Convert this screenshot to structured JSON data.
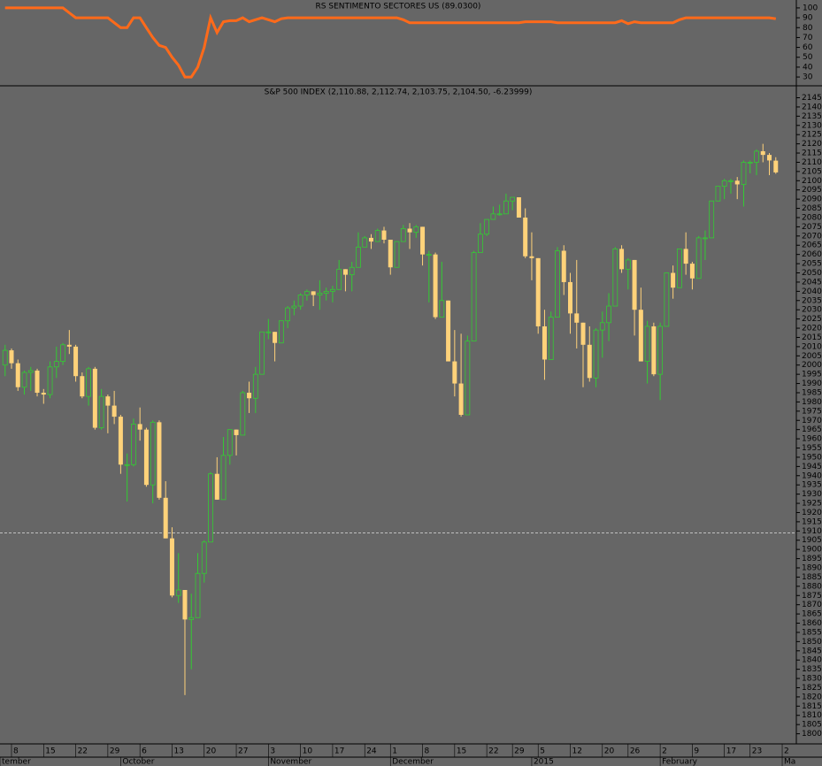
{
  "chart_data": [
    {
      "type": "line",
      "title": "RS SENTIMENTO SECTORES US (89.0300)",
      "color": "#ff6a1a",
      "ylim": [
        22,
        108
      ],
      "yticks": [
        30,
        40,
        50,
        60,
        70,
        80,
        90,
        100
      ],
      "values": [
        100,
        100,
        100,
        100,
        100,
        100,
        100,
        100,
        100,
        100,
        95,
        90,
        90,
        90,
        90,
        90,
        90,
        85,
        80,
        80,
        90,
        90,
        80,
        70,
        62,
        60,
        50,
        42,
        30,
        30,
        40,
        60,
        90,
        75,
        86,
        87,
        87,
        90,
        86,
        88,
        90,
        88,
        86,
        89,
        90,
        90,
        90,
        90,
        90,
        90,
        90,
        90,
        90,
        90,
        90,
        90,
        90,
        90,
        90,
        90,
        90,
        90,
        88,
        85,
        85,
        85,
        85,
        85,
        85,
        85,
        85,
        85,
        85,
        85,
        85,
        85,
        85,
        85,
        85,
        85,
        85,
        86,
        86,
        86,
        86,
        86,
        85,
        85,
        85,
        85,
        85,
        85,
        85,
        85,
        85,
        85,
        87,
        84,
        86,
        85,
        85,
        85,
        85,
        85,
        85,
        88,
        90,
        90,
        90,
        90,
        90,
        90,
        90,
        90,
        90,
        90,
        90,
        90,
        90,
        90,
        89.03
      ]
    },
    {
      "type": "candlestick",
      "title": "S&P 500 INDEX (2,110.88, 2,112.74, 2,103.75, 2,104.50, -6.23999)",
      "up_color": "#33cc33",
      "down_color": "#ffd27a",
      "ylim": [
        1795,
        2151
      ],
      "yticks": [
        1800,
        1805,
        1810,
        1815,
        1820,
        1825,
        1830,
        1835,
        1840,
        1845,
        1850,
        1855,
        1860,
        1865,
        1870,
        1875,
        1880,
        1885,
        1890,
        1895,
        1900,
        1905,
        1910,
        1915,
        1920,
        1925,
        1930,
        1935,
        1940,
        1945,
        1950,
        1955,
        1960,
        1965,
        1970,
        1975,
        1980,
        1985,
        1990,
        1995,
        2000,
        2005,
        2010,
        2015,
        2020,
        2025,
        2030,
        2035,
        2040,
        2045,
        2050,
        2055,
        2060,
        2065,
        2070,
        2075,
        2080,
        2085,
        2090,
        2095,
        2100,
        2105,
        2110,
        2115,
        2120,
        2125,
        2130,
        2135,
        2140,
        2145
      ],
      "reference_line": 1909,
      "xlim": [
        -0.79,
        123.2
      ],
      "xticks": [
        {
          "value": 1,
          "label": "8"
        },
        {
          "value": 6,
          "label": "15"
        },
        {
          "value": 11,
          "label": "22"
        },
        {
          "value": 16,
          "label": "29"
        },
        {
          "value": 21,
          "label": "6"
        },
        {
          "value": 26,
          "label": "13"
        },
        {
          "value": 31,
          "label": "20"
        },
        {
          "value": 36,
          "label": "27"
        },
        {
          "value": 41,
          "label": "3"
        },
        {
          "value": 46,
          "label": "10"
        },
        {
          "value": 51,
          "label": "17"
        },
        {
          "value": 56,
          "label": "24"
        },
        {
          "value": 60,
          "label": "1"
        },
        {
          "value": 65,
          "label": "8"
        },
        {
          "value": 70,
          "label": "15"
        },
        {
          "value": 75,
          "label": "22"
        },
        {
          "value": 79,
          "label": "29"
        },
        {
          "value": 83,
          "label": "5"
        },
        {
          "value": 88,
          "label": "12"
        },
        {
          "value": 93,
          "label": "20"
        },
        {
          "value": 97,
          "label": "26"
        },
        {
          "value": 102,
          "label": "2"
        },
        {
          "value": 107,
          "label": "9"
        },
        {
          "value": 112,
          "label": "17"
        },
        {
          "value": 116,
          "label": "23"
        },
        {
          "value": 121,
          "label": "2"
        }
      ],
      "month_ticks": [
        {
          "value": -0.79,
          "label": "tember"
        },
        {
          "value": 18,
          "label": "October"
        },
        {
          "value": 41,
          "label": "November"
        },
        {
          "value": 60,
          "label": "December"
        },
        {
          "value": 82,
          "label": "2015"
        },
        {
          "value": 102,
          "label": "February"
        },
        {
          "value": 121,
          "label": "Ma"
        }
      ],
      "open": [
        2000,
        2008,
        2001,
        1988,
        1996,
        1997,
        1985,
        1984,
        1999,
        2002,
        2011,
        2010,
        1994,
        1983,
        1998,
        1966,
        1983,
        1978,
        1972,
        1946,
        1946,
        1968,
        1965,
        1935,
        1969,
        1928,
        1906,
        1875,
        1878,
        1862,
        1863,
        1887,
        1904,
        1941,
        1927,
        1951,
        1965,
        1962,
        1985,
        1982,
        1995,
        2018,
        2018,
        2012,
        2024,
        2031,
        2032,
        2038,
        2040,
        2038,
        2039,
        2040,
        2041,
        2052,
        2049,
        2053,
        2064,
        2069,
        2067,
        2073,
        2068,
        2053,
        2067,
        2074,
        2072,
        2075,
        2060,
        2060,
        2026,
        2035,
        2002,
        1990,
        1973,
        2013,
        2061,
        2071,
        2079,
        2082,
        2082,
        2089,
        2091,
        2080,
        2059,
        2058,
        2021,
        2003,
        2026,
        2062,
        2045,
        2028,
        2023,
        2011,
        1993,
        2019,
        2023,
        2032,
        2063,
        2052,
        2057,
        2030,
        2002,
        2021,
        1995,
        2021,
        2050,
        2042,
        2063,
        2055,
        2047,
        2069,
        2069,
        2089,
        2097,
        2100,
        2100,
        2098,
        2110,
        2110,
        2116,
        2114,
        2110.88
      ],
      "high": [
        2011,
        2009,
        2003,
        1997,
        1999,
        1998,
        1987,
        2002,
        2010,
        2012,
        2019,
        2011,
        1996,
        1999,
        1999,
        1987,
        1984,
        1986,
        1973,
        1952,
        1971,
        1977,
        1966,
        1970,
        1970,
        1937,
        1912,
        1898,
        1878,
        1876,
        1898,
        1905,
        1942,
        1950,
        1961,
        1965,
        1965,
        1986,
        1991,
        1999,
        2018,
        2025,
        2018,
        2024,
        2032,
        2035,
        2039,
        2041,
        2040,
        2046,
        2042,
        2043,
        2057,
        2052,
        2056,
        2072,
        2070,
        2071,
        2074,
        2075,
        2068,
        2067,
        2076,
        2077,
        2076,
        2075,
        2062,
        2061,
        2056,
        2035,
        2019,
        2017,
        2016,
        2062,
        2077,
        2079,
        2086,
        2087,
        2093,
        2091,
        2091,
        2085,
        2072,
        2058,
        2030,
        2029,
        2064,
        2065,
        2050,
        2057,
        2023,
        2021,
        2020,
        2029,
        2039,
        2064,
        2065,
        2058,
        2057,
        2042,
        2024,
        2023,
        2023,
        2050,
        2054,
        2063,
        2072,
        2056,
        2070,
        2073,
        2089,
        2097,
        2101,
        2101,
        2102,
        2111,
        2111,
        2117,
        2120,
        2115,
        2112.74
      ],
      "low": [
        1994,
        1998,
        1986,
        1984,
        1986,
        1983,
        1979,
        1982,
        1993,
        2000,
        2006,
        1991,
        1982,
        1978,
        1965,
        1965,
        1963,
        1968,
        1941,
        1926,
        1945,
        1959,
        1934,
        1925,
        1927,
        1906,
        1874,
        1871,
        1821,
        1835,
        1863,
        1882,
        1904,
        1927,
        1927,
        1946,
        1951,
        1962,
        1974,
        1974,
        1995,
        2014,
        2002,
        2012,
        2020,
        2027,
        2030,
        2035,
        2032,
        2030,
        2035,
        2034,
        2041,
        2040,
        2040,
        2053,
        2064,
        2063,
        2067,
        2066,
        2049,
        2053,
        2067,
        2063,
        2069,
        2054,
        2034,
        2025,
        2026,
        2002,
        1983,
        1972,
        1973,
        2013,
        2061,
        2070,
        2079,
        2081,
        2082,
        2084,
        2080,
        2058,
        2046,
        2017,
        1992,
        2003,
        2026,
        2038,
        2017,
        2009,
        1988,
        1991,
        1988,
        2004,
        2013,
        2032,
        2050,
        2041,
        2016,
        2002,
        1990,
        1994,
        1981,
        2021,
        2036,
        2042,
        2049,
        2041,
        2047,
        2057,
        2069,
        2089,
        2090,
        2093,
        2090,
        2086,
        2104,
        2103,
        2110,
        2103,
        2103.75
      ],
      "close": [
        2008,
        2001,
        1988,
        1996,
        1997,
        1985,
        1984,
        1999,
        2002,
        2011,
        2010,
        1994,
        1983,
        1998,
        1966,
        1983,
        1978,
        1972,
        1946,
        1946,
        1968,
        1965,
        1935,
        1969,
        1928,
        1906,
        1875,
        1878,
        1862,
        1863,
        1887,
        1904,
        1941,
        1927,
        1951,
        1965,
        1962,
        1985,
        1982,
        1995,
        2018,
        2018,
        2012,
        2024,
        2031,
        2032,
        2038,
        2040,
        2038,
        2039,
        2040,
        2041,
        2052,
        2049,
        2053,
        2064,
        2069,
        2067,
        2073,
        2068,
        2053,
        2067,
        2074,
        2072,
        2075,
        2060,
        2060,
        2026,
        2035,
        2002,
        1990,
        1973,
        2013,
        2061,
        2071,
        2079,
        2082,
        2082,
        2089,
        2091,
        2080,
        2059,
        2058,
        2021,
        2003,
        2026,
        2062,
        2045,
        2028,
        2023,
        2011,
        1993,
        2019,
        2023,
        2032,
        2063,
        2052,
        2057,
        2030,
        2002,
        2021,
        1995,
        2021,
        2050,
        2042,
        2063,
        2055,
        2047,
        2069,
        2069,
        2089,
        2097,
        2100,
        2100,
        2098,
        2110,
        2110,
        2116,
        2114,
        2111,
        2104.5
      ]
    }
  ]
}
